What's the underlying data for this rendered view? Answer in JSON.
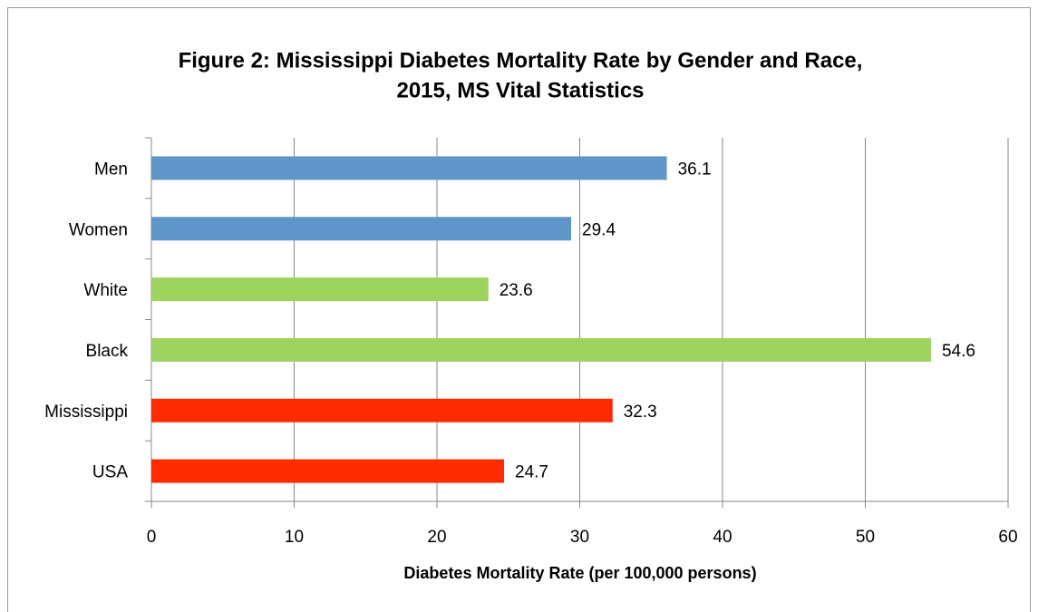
{
  "chart_data": {
    "type": "bar",
    "orientation": "horizontal",
    "title": [
      "Figure 2:  Mississippi Diabetes Mortality Rate by Gender and Race,",
      "2015, MS Vital Statistics"
    ],
    "x_label": "Diabetes Mortality Rate (per 100,000 persons)",
    "categories": [
      "Men",
      "Women",
      "White",
      "Black",
      "Mississippi",
      "USA"
    ],
    "values": [
      36.1,
      29.4,
      23.6,
      54.6,
      32.3,
      24.7
    ],
    "colors": [
      "#6095c9",
      "#6095c9",
      "#9ed35f",
      "#9ed35f",
      "#ff2a00",
      "#ff2a00"
    ],
    "xlim": [
      0,
      60
    ],
    "xticks": [
      0,
      10,
      20,
      30,
      40,
      50,
      60
    ],
    "grid": true
  }
}
